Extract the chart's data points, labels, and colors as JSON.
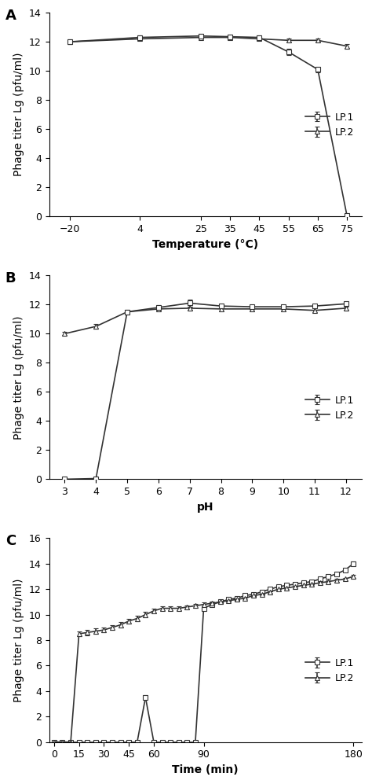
{
  "panel_A": {
    "label": "A",
    "xlabel": "Temperature (°C)",
    "ylabel": "Phage titer Lg (pfu/ml)",
    "xlim": [
      -27,
      80
    ],
    "ylim": [
      0,
      14
    ],
    "xticks": [
      -20,
      4,
      25,
      35,
      45,
      55,
      65,
      75
    ],
    "yticks": [
      0,
      2,
      4,
      6,
      8,
      10,
      12,
      14
    ],
    "LP1_x": [
      -20,
      4,
      25,
      35,
      45,
      55,
      65,
      75
    ],
    "LP1_y": [
      12.0,
      12.3,
      12.4,
      12.35,
      12.3,
      11.3,
      10.1,
      0.05
    ],
    "LP1_err": [
      0.15,
      0.15,
      0.15,
      0.15,
      0.15,
      0.2,
      0.2,
      0.05
    ],
    "LP2_x": [
      -20,
      4,
      25,
      35,
      45,
      55,
      65,
      75
    ],
    "LP2_y": [
      12.0,
      12.2,
      12.3,
      12.3,
      12.2,
      12.1,
      12.1,
      11.7
    ],
    "LP2_err": [
      0.1,
      0.1,
      0.1,
      0.1,
      0.1,
      0.1,
      0.1,
      0.15
    ]
  },
  "panel_B": {
    "label": "B",
    "xlabel": "pH",
    "ylabel": "Phage titer Lg (pfu/ml)",
    "xlim": [
      2.5,
      12.5
    ],
    "ylim": [
      0,
      14
    ],
    "xticks": [
      3,
      4,
      5,
      6,
      7,
      8,
      9,
      10,
      11,
      12
    ],
    "yticks": [
      0,
      2,
      4,
      6,
      8,
      10,
      12,
      14
    ],
    "LP1_x": [
      3,
      4,
      5,
      6,
      7,
      8,
      9,
      10,
      11,
      12
    ],
    "LP1_y": [
      0.0,
      0.05,
      11.5,
      11.8,
      12.1,
      11.9,
      11.85,
      11.85,
      11.9,
      12.05
    ],
    "LP1_err": [
      0.05,
      0.05,
      0.15,
      0.15,
      0.25,
      0.1,
      0.1,
      0.1,
      0.1,
      0.15
    ],
    "LP2_x": [
      3,
      4,
      5,
      6,
      7,
      8,
      9,
      10,
      11,
      12
    ],
    "LP2_y": [
      10.0,
      10.5,
      11.5,
      11.7,
      11.75,
      11.7,
      11.7,
      11.7,
      11.6,
      11.75
    ],
    "LP2_err": [
      0.1,
      0.15,
      0.15,
      0.1,
      0.1,
      0.1,
      0.1,
      0.1,
      0.15,
      0.1
    ]
  },
  "panel_C": {
    "label": "C",
    "xlabel": "Time (min)",
    "ylabel": "Phage titer Lg (pfu/ml)",
    "xlim": [
      -3,
      185
    ],
    "ylim": [
      0,
      16
    ],
    "xticks": [
      0,
      15,
      30,
      45,
      60,
      90,
      180
    ],
    "yticks": [
      0,
      2,
      4,
      6,
      8,
      10,
      12,
      14,
      16
    ],
    "LP1_x": [
      0,
      5,
      10,
      15,
      20,
      25,
      30,
      35,
      40,
      45,
      50,
      55,
      60,
      65,
      70,
      75,
      80,
      85,
      90,
      95,
      100,
      105,
      110,
      115,
      120,
      125,
      130,
      135,
      140,
      145,
      150,
      155,
      160,
      165,
      170,
      175,
      180
    ],
    "LP1_y": [
      0,
      0,
      0,
      0,
      0,
      0,
      0,
      0,
      0,
      0,
      0,
      3.5,
      0,
      0,
      0,
      0,
      0,
      0,
      10.5,
      10.8,
      11.0,
      11.2,
      11.3,
      11.5,
      11.6,
      11.8,
      12.0,
      12.2,
      12.3,
      12.4,
      12.5,
      12.6,
      12.8,
      13.0,
      13.2,
      13.5,
      14.0
    ],
    "LP1_err": [
      0.05,
      0.05,
      0.05,
      0.05,
      0.05,
      0.05,
      0.05,
      0.05,
      0.05,
      0.05,
      0.05,
      0.15,
      0.05,
      0.05,
      0.05,
      0.05,
      0.05,
      0.05,
      0.15,
      0.15,
      0.1,
      0.1,
      0.1,
      0.1,
      0.1,
      0.1,
      0.1,
      0.1,
      0.1,
      0.1,
      0.1,
      0.1,
      0.1,
      0.1,
      0.1,
      0.1,
      0.15
    ],
    "LP2_x": [
      0,
      5,
      10,
      15,
      20,
      25,
      30,
      35,
      40,
      45,
      50,
      55,
      60,
      65,
      70,
      75,
      80,
      85,
      90,
      95,
      100,
      105,
      110,
      115,
      120,
      125,
      130,
      135,
      140,
      145,
      150,
      155,
      160,
      165,
      170,
      175,
      180
    ],
    "LP2_y": [
      0,
      0,
      0,
      8.5,
      8.6,
      8.7,
      8.8,
      9.0,
      9.2,
      9.5,
      9.7,
      10.0,
      10.3,
      10.5,
      10.5,
      10.5,
      10.6,
      10.7,
      10.8,
      10.9,
      11.0,
      11.1,
      11.2,
      11.3,
      11.5,
      11.6,
      11.8,
      12.0,
      12.1,
      12.2,
      12.3,
      12.4,
      12.5,
      12.6,
      12.7,
      12.8,
      13.0
    ],
    "LP2_err": [
      0.05,
      0.05,
      0.05,
      0.2,
      0.2,
      0.2,
      0.2,
      0.2,
      0.2,
      0.2,
      0.2,
      0.2,
      0.15,
      0.15,
      0.15,
      0.15,
      0.15,
      0.15,
      0.15,
      0.15,
      0.1,
      0.1,
      0.1,
      0.1,
      0.1,
      0.1,
      0.1,
      0.1,
      0.1,
      0.1,
      0.1,
      0.1,
      0.1,
      0.1,
      0.1,
      0.1,
      0.1
    ]
  },
  "line_color": "#333333",
  "marker_square": "s",
  "marker_triangle": "^",
  "markersize": 5,
  "linewidth": 1.2,
  "legend_LP1": "LP.1",
  "legend_LP2": "LP.2",
  "background_color": "#ffffff",
  "tick_fontsize": 9,
  "axis_label_fontsize": 10,
  "panel_label_fontsize": 13
}
